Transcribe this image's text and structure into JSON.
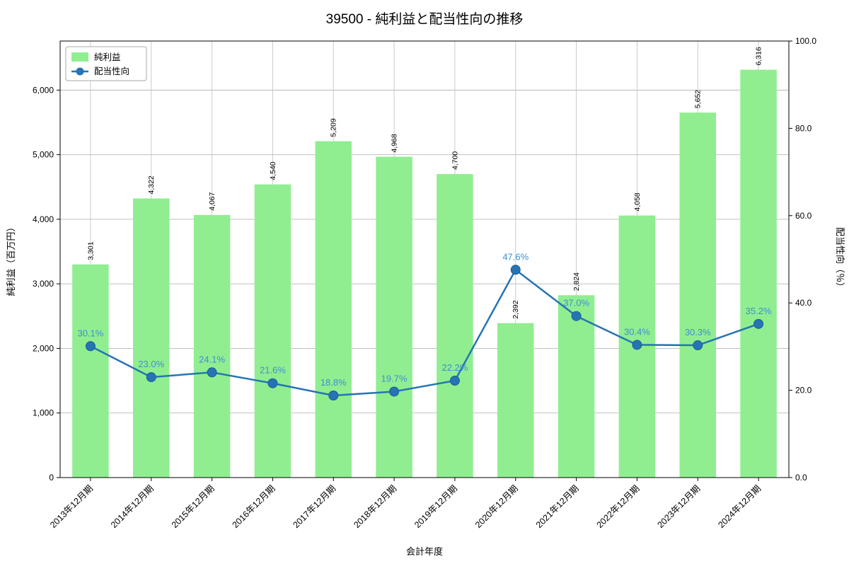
{
  "figure": {
    "title": "39500 - 純利益と配当性向の推移"
  },
  "chart_data": {
    "type": "bar+line",
    "title": "39500 - 純利益と配当性向の推移",
    "xlabel": "会計年度",
    "ylabel_left": "純利益（百万円）",
    "ylabel_right": "配当性向（％）",
    "categories": [
      "2013年12月期",
      "2014年12月期",
      "2015年12月期",
      "2016年12月期",
      "2017年12月期",
      "2018年12月期",
      "2019年12月期",
      "2020年12月期",
      "2021年12月期",
      "2022年12月期",
      "2023年12月期",
      "2024年12月期"
    ],
    "series": [
      {
        "name": "純利益",
        "type": "bar",
        "axis": "left",
        "color": "#90ee90",
        "values": [
          3301,
          4322,
          4067,
          4540,
          5209,
          4968,
          4700,
          2392,
          2824,
          4058,
          5652,
          6316
        ]
      },
      {
        "name": "配当性向",
        "type": "line",
        "axis": "right",
        "color": "#2574b5",
        "edge_color": "#1b5e93",
        "label_color": "#3d8fd1",
        "values": [
          30.1,
          23.0,
          24.1,
          21.6,
          18.8,
          19.7,
          22.2,
          47.6,
          37.0,
          30.4,
          30.3,
          35.2
        ]
      }
    ],
    "y_left_ticks": [
      0,
      1000,
      2000,
      3000,
      4000,
      5000,
      6000
    ],
    "y_left_max": 6760,
    "y_right_ticks": [
      0,
      20,
      40,
      60,
      80,
      100
    ],
    "y_right_max": 100,
    "grid": true,
    "legend_position": "top-left"
  }
}
